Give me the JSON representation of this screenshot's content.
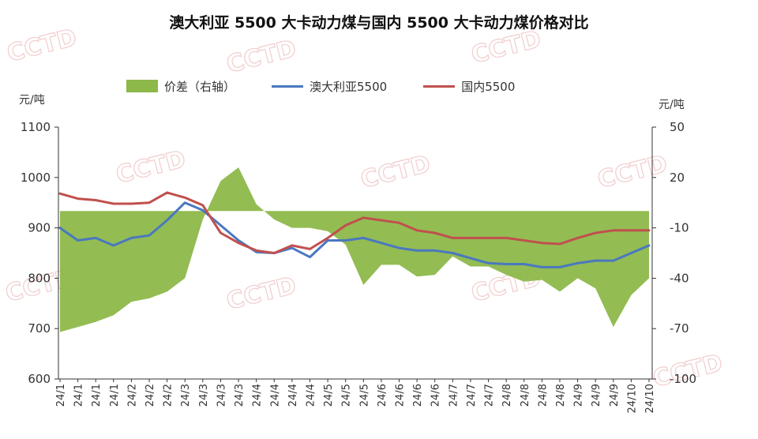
{
  "chart_data": {
    "type": "line",
    "title": "澳大利亚 5500 大卡动力煤与国内 5500 大卡动力煤价格对比",
    "y_left_unit": "元/吨",
    "y_right_unit": "元/吨",
    "y_left_range": [
      600,
      1100
    ],
    "y_left_ticks": [
      "600",
      "700",
      "800",
      "900",
      "1000",
      "1100"
    ],
    "y_right_range": [
      -100,
      50
    ],
    "y_right_ticks": [
      "-100",
      "-70",
      "-40",
      "-10",
      "20",
      "50"
    ],
    "x_tick_labels": [
      "24/1",
      "24/1",
      "24/1",
      "24/1",
      "24/2",
      "24/2",
      "24/2",
      "24/3",
      "24/3",
      "24/3",
      "24/3",
      "24/4",
      "24/4",
      "24/4",
      "24/4",
      "24/5",
      "24/5",
      "24/5",
      "24/6",
      "24/6",
      "24/6",
      "24/6",
      "24/7",
      "24/7",
      "24/7",
      "24/8",
      "24/8",
      "24/8",
      "24/8",
      "24/9",
      "24/9",
      "24/9",
      "24/10",
      "24/10"
    ],
    "legend_position": "top",
    "grid": false,
    "series": [
      {
        "name": "价差（右轴）",
        "kind": "area",
        "axis": "right",
        "color": "#8db84a",
        "x": [
          0,
          1,
          2,
          3,
          4,
          5,
          6,
          7,
          8,
          9,
          10,
          11,
          12,
          13,
          14,
          15,
          16,
          17,
          18,
          19,
          20,
          21,
          22,
          23,
          24,
          25,
          26,
          27,
          28,
          29,
          30,
          31,
          32,
          33
        ],
        "values": [
          -72,
          -69,
          -66,
          -62,
          -54,
          -52,
          -48,
          -40,
          -5,
          18,
          26,
          4,
          -5,
          -10,
          -10,
          -12,
          -20,
          -44,
          -32,
          -32,
          -39,
          -38,
          -27,
          -33,
          -33,
          -38,
          -42,
          -41,
          -48,
          -40,
          -46,
          -69,
          -50,
          -40
        ]
      },
      {
        "name": "澳大利亚5500",
        "kind": "line",
        "axis": "left",
        "color": "#4a78bf",
        "x": [
          0,
          1,
          2,
          3,
          4,
          5,
          6,
          7,
          8,
          9,
          10,
          11,
          12,
          13,
          14,
          15,
          16,
          17,
          18,
          19,
          20,
          21,
          22,
          23,
          24,
          25,
          26,
          27,
          28,
          29,
          30,
          31,
          32,
          33
        ],
        "values": [
          900,
          875,
          880,
          865,
          880,
          885,
          915,
          950,
          935,
          905,
          875,
          852,
          850,
          860,
          842,
          875,
          875,
          880,
          870,
          860,
          855,
          855,
          850,
          840,
          830,
          828,
          828,
          822,
          822,
          830,
          835,
          835,
          850,
          865
        ]
      },
      {
        "name": "国内5500",
        "kind": "line",
        "axis": "left",
        "color": "#c0504d",
        "x": [
          0,
          1,
          2,
          3,
          4,
          5,
          6,
          7,
          8,
          9,
          10,
          11,
          12,
          13,
          14,
          15,
          16,
          17,
          18,
          19,
          20,
          21,
          22,
          23,
          24,
          25,
          26,
          27,
          28,
          29,
          30,
          31,
          32,
          33
        ],
        "values": [
          968,
          958,
          955,
          948,
          948,
          950,
          970,
          960,
          945,
          890,
          870,
          855,
          850,
          865,
          858,
          880,
          905,
          920,
          915,
          910,
          895,
          890,
          880,
          880,
          880,
          880,
          875,
          870,
          868,
          880,
          890,
          895,
          895,
          895
        ]
      }
    ]
  },
  "watermark": {
    "text": "CCTD",
    "color": "#e7a5a5"
  }
}
